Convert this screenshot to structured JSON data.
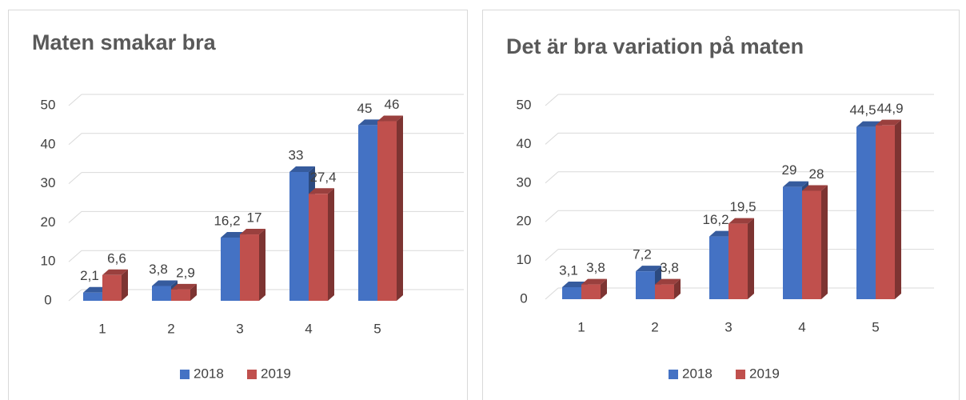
{
  "chart_data": [
    {
      "type": "bar3d",
      "title": "Maten smakar bra",
      "categories": [
        "1",
        "2",
        "3",
        "4",
        "5"
      ],
      "series": [
        {
          "name": "2018",
          "color": "#4472c4",
          "values": [
            2.1,
            3.8,
            16.2,
            33,
            45
          ],
          "value_labels": [
            "2,1",
            "3,8",
            "16,2",
            "33",
            "45"
          ]
        },
        {
          "name": "2019",
          "color": "#c0504d",
          "values": [
            6.6,
            2.9,
            17,
            27.4,
            46
          ],
          "value_labels": [
            "6,6",
            "2,9",
            "17",
            "27,4",
            "46"
          ]
        }
      ],
      "ylim": [
        0,
        50
      ],
      "yticks": [
        0,
        10,
        20,
        30,
        40,
        50
      ],
      "grid": true,
      "legend": "bottom"
    },
    {
      "type": "bar3d",
      "title": "Det är bra variation på maten",
      "categories": [
        "1",
        "2",
        "3",
        "4",
        "5"
      ],
      "series": [
        {
          "name": "2018",
          "color": "#4472c4",
          "values": [
            3.1,
            7.2,
            16.2,
            29,
            44.5
          ],
          "value_labels": [
            "3,1",
            "7,2",
            "16,2",
            "29",
            "44,5"
          ]
        },
        {
          "name": "2019",
          "color": "#c0504d",
          "values": [
            3.8,
            3.8,
            19.5,
            28,
            44.9
          ],
          "value_labels": [
            "3,8",
            "3,8",
            "19,5",
            "28",
            "44,9"
          ]
        }
      ],
      "ylim": [
        0,
        50
      ],
      "yticks": [
        0,
        10,
        20,
        30,
        40,
        50
      ],
      "grid": true,
      "legend": "bottom"
    }
  ]
}
